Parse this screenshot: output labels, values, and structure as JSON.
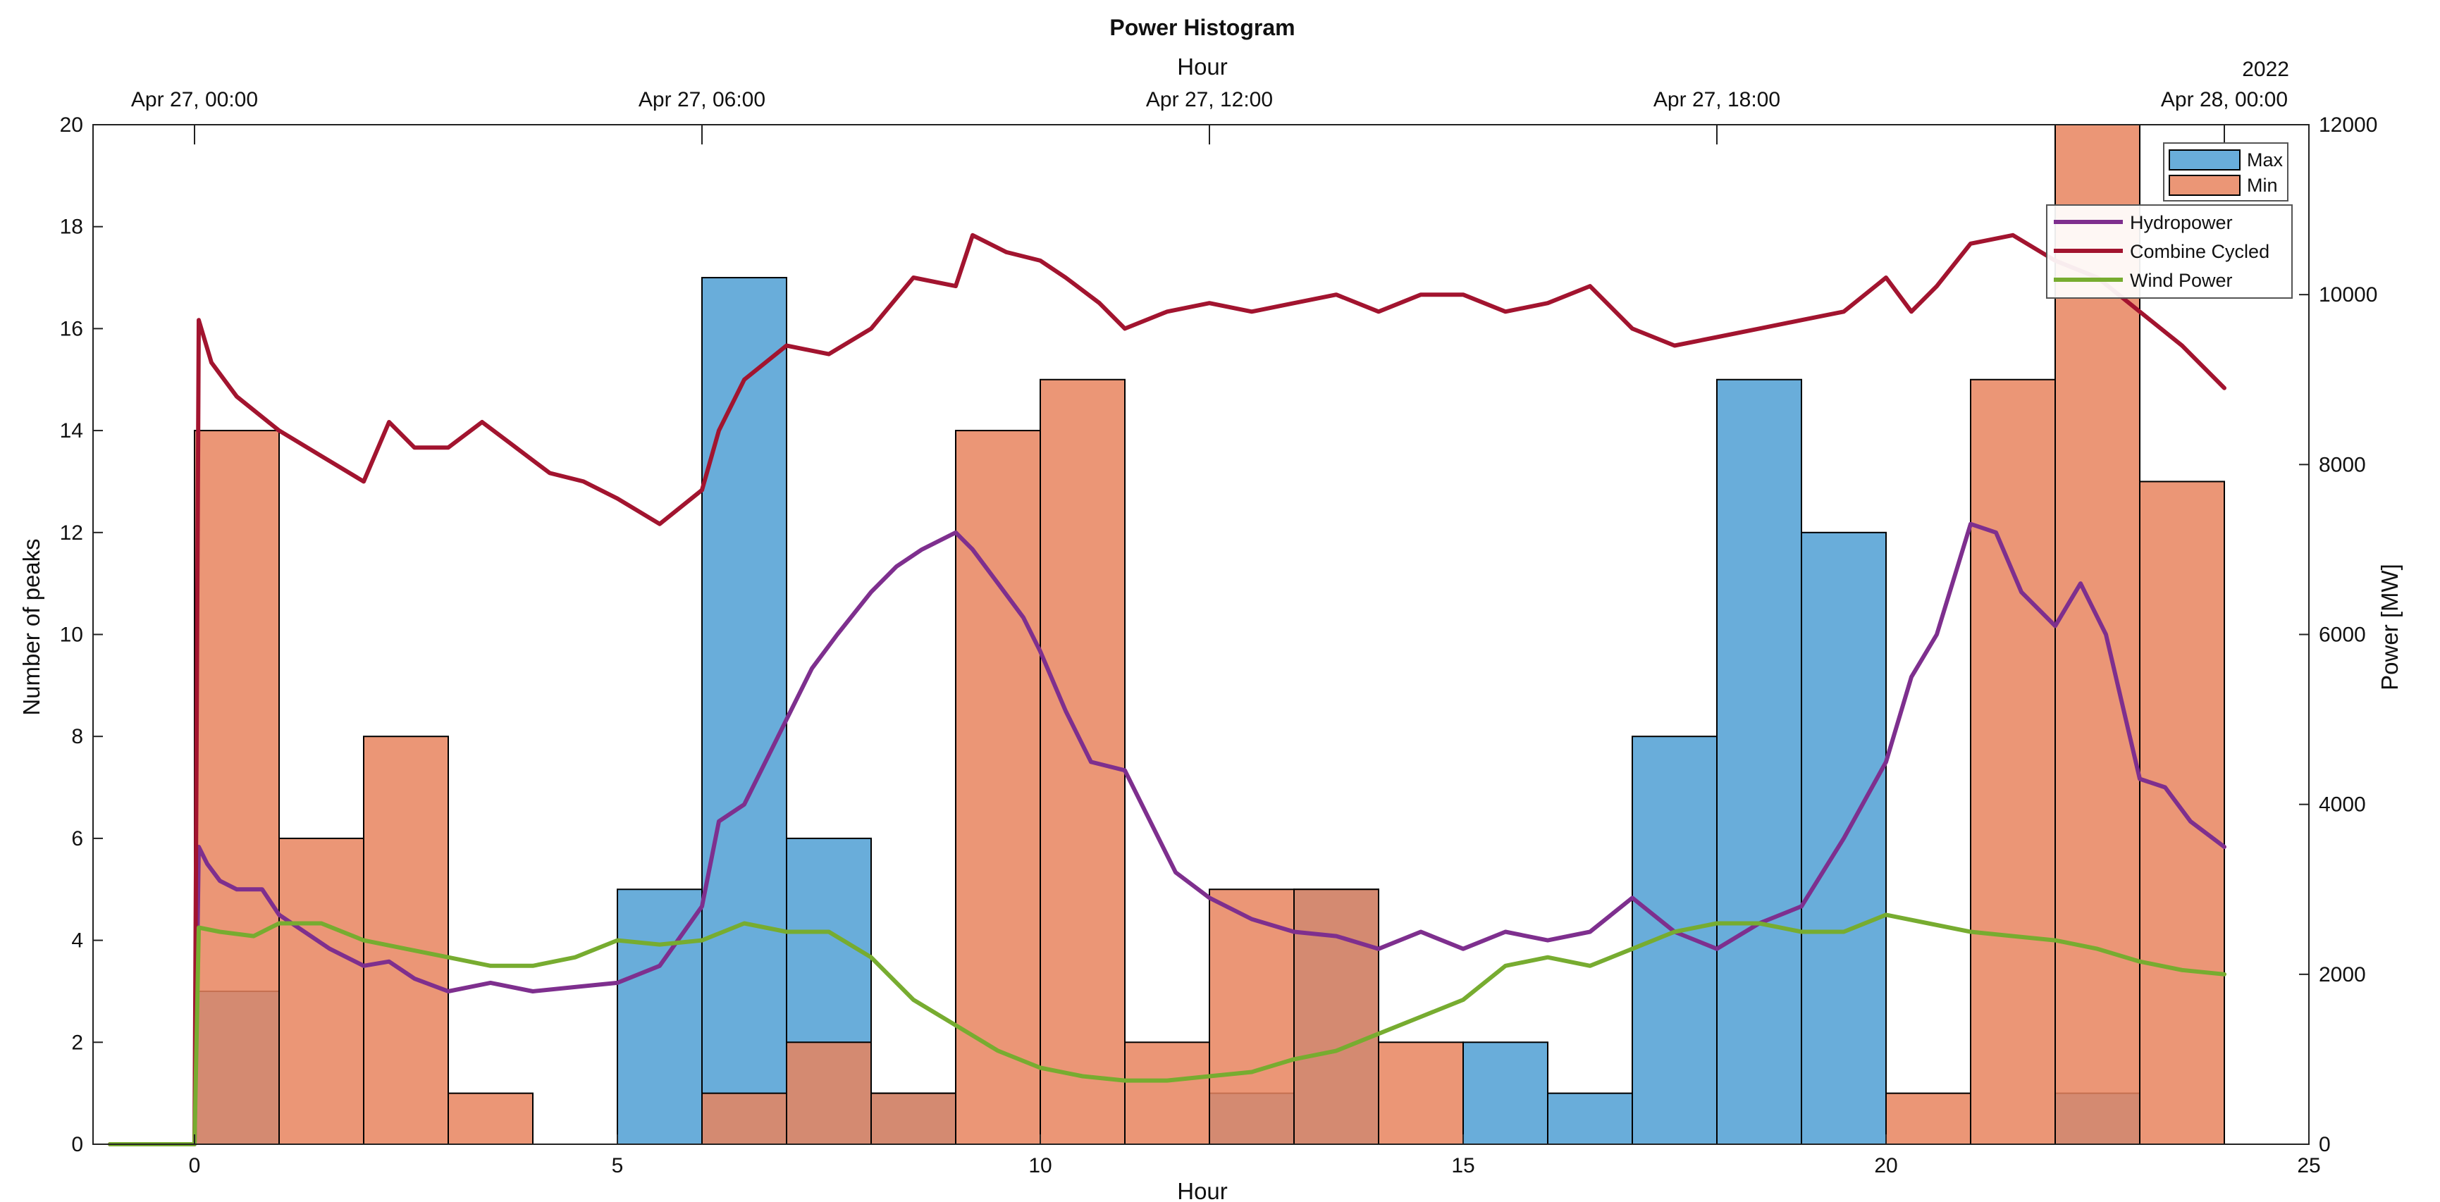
{
  "chart_data": {
    "type": "bar",
    "title": "Power Histogram",
    "xlabel": "Hour",
    "ylabel_left": "Number of peaks",
    "ylabel_right": "Power [MW]",
    "top_xlabel": "Hour",
    "top_year": "2022",
    "xlim": [
      -1.2,
      25
    ],
    "ylim_left": [
      0,
      20
    ],
    "ylim_right": [
      0,
      12000
    ],
    "xticks": [
      0,
      5,
      10,
      15,
      20,
      25
    ],
    "yticks_left": [
      0,
      2,
      4,
      6,
      8,
      10,
      12,
      14,
      16,
      18,
      20
    ],
    "yticks_right": [
      0,
      2000,
      4000,
      6000,
      8000,
      10000,
      12000
    ],
    "top_ticks": [
      {
        "x": 0,
        "label": "Apr 27, 00:00"
      },
      {
        "x": 6,
        "label": "Apr 27, 06:00"
      },
      {
        "x": 12,
        "label": "Apr 27, 12:00"
      },
      {
        "x": 18,
        "label": "Apr 27, 18:00"
      },
      {
        "x": 24,
        "label": "Apr 28, 00:00"
      }
    ],
    "bin_edges": [
      0,
      1,
      2,
      3,
      4,
      5,
      6,
      7,
      8,
      9,
      10,
      11,
      12,
      13,
      14,
      15,
      16,
      17,
      18,
      19,
      20,
      21,
      22,
      23,
      24
    ],
    "histogram_series": [
      {
        "name": "Max",
        "color": "#4f9fd4",
        "values": [
          3,
          0,
          0,
          0,
          0,
          5,
          17,
          6,
          1,
          0,
          0,
          0,
          1,
          5,
          0,
          2,
          1,
          8,
          15,
          12,
          0,
          0,
          1,
          0
        ]
      },
      {
        "name": "Min",
        "color": "#e8845e",
        "values": [
          14,
          6,
          8,
          1,
          0,
          0,
          1,
          2,
          1,
          14,
          15,
          2,
          5,
          5,
          2,
          0,
          0,
          0,
          0,
          0,
          1,
          15,
          20,
          13
        ]
      }
    ],
    "line_series": [
      {
        "name": "Hydropower",
        "color": "#7e2f8e",
        "x": [
          -1,
          0,
          0.05,
          0.15,
          0.3,
          0.5,
          0.8,
          1,
          1.3,
          1.6,
          2,
          2.3,
          2.6,
          3,
          3.5,
          4,
          4.5,
          5,
          5.5,
          6,
          6.2,
          6.5,
          6.8,
          7,
          7.3,
          7.6,
          8,
          8.3,
          8.6,
          9,
          9.2,
          9.5,
          9.8,
          10,
          10.3,
          10.6,
          11,
          11.3,
          11.6,
          12,
          12.5,
          13,
          13.5,
          14,
          14.5,
          15,
          15.5,
          16,
          16.5,
          17,
          17.5,
          18,
          18.5,
          19,
          19.5,
          20,
          20.3,
          20.6,
          21,
          21.3,
          21.6,
          22,
          22.3,
          22.6,
          23,
          23.3,
          23.6,
          24
        ],
        "y": [
          0,
          0,
          3500,
          3300,
          3100,
          3000,
          3000,
          2700,
          2500,
          2300,
          2100,
          2150,
          1950,
          1800,
          1900,
          1800,
          1850,
          1900,
          2100,
          2800,
          3800,
          4000,
          4600,
          5000,
          5600,
          6000,
          6500,
          6800,
          7000,
          7200,
          7000,
          6600,
          6200,
          5800,
          5100,
          4500,
          4400,
          3800,
          3200,
          2900,
          2650,
          2500,
          2450,
          2300,
          2500,
          2300,
          2500,
          2400,
          2500,
          2900,
          2500,
          2300,
          2600,
          2800,
          3600,
          4500,
          5500,
          6000,
          7300,
          7200,
          6500,
          6100,
          6600,
          6000,
          4300,
          4200,
          3800,
          3500
        ]
      },
      {
        "name": "Combine Cycled",
        "color": "#a2142f",
        "x": [
          -1,
          0,
          0.05,
          0.2,
          0.5,
          1,
          1.5,
          2,
          2.3,
          2.6,
          3,
          3.4,
          3.8,
          4.2,
          4.6,
          5,
          5.5,
          6,
          6.2,
          6.5,
          7,
          7.5,
          8,
          8.5,
          9,
          9.2,
          9.6,
          10,
          10.3,
          10.7,
          11,
          11.5,
          12,
          12.5,
          13,
          13.5,
          14,
          14.5,
          15,
          15.5,
          16,
          16.5,
          17,
          17.5,
          18,
          18.5,
          19,
          19.5,
          20,
          20.3,
          20.6,
          21,
          21.5,
          22,
          22.5,
          23,
          23.5,
          24
        ],
        "y": [
          0,
          0,
          9700,
          9200,
          8800,
          8400,
          8100,
          7800,
          8500,
          8200,
          8200,
          8500,
          8200,
          7900,
          7800,
          7600,
          7300,
          7700,
          8400,
          9000,
          9400,
          9300,
          9600,
          10200,
          10100,
          10700,
          10500,
          10400,
          10200,
          9900,
          9600,
          9800,
          9900,
          9800,
          9900,
          10000,
          9800,
          10000,
          10000,
          9800,
          9900,
          10100,
          9600,
          9400,
          9500,
          9600,
          9700,
          9800,
          10200,
          9800,
          10100,
          10600,
          10700,
          10400,
          10200,
          9800,
          9400,
          8900
        ]
      },
      {
        "name": "Wind Power",
        "color": "#77ac30",
        "x": [
          -1,
          0,
          0.05,
          0.3,
          0.7,
          1,
          1.5,
          2,
          2.5,
          3,
          3.5,
          4,
          4.5,
          5,
          5.5,
          6,
          6.5,
          7,
          7.5,
          8,
          8.5,
          9,
          9.5,
          10,
          10.5,
          11,
          11.5,
          12,
          12.5,
          13,
          13.5,
          14,
          14.5,
          15,
          15.5,
          16,
          16.5,
          17,
          17.5,
          18,
          18.5,
          19,
          19.5,
          20,
          20.5,
          21,
          21.5,
          22,
          22.5,
          23,
          23.5,
          24
        ],
        "y": [
          0,
          0,
          2550,
          2500,
          2450,
          2600,
          2600,
          2400,
          2300,
          2200,
          2100,
          2100,
          2200,
          2400,
          2350,
          2400,
          2600,
          2500,
          2500,
          2200,
          1700,
          1400,
          1100,
          900,
          800,
          750,
          750,
          800,
          850,
          1000,
          1100,
          1300,
          1500,
          1700,
          2100,
          2200,
          2100,
          2300,
          2500,
          2600,
          2600,
          2500,
          2500,
          2700,
          2600,
          2500,
          2450,
          2400,
          2300,
          2150,
          2050,
          2000
        ]
      }
    ],
    "legend": {
      "hist_entries": [
        "Max",
        "Min"
      ],
      "line_entries": [
        "Hydropower",
        "Combine Cycled",
        "Wind Power"
      ],
      "placement": "top-right"
    },
    "grid": false
  }
}
